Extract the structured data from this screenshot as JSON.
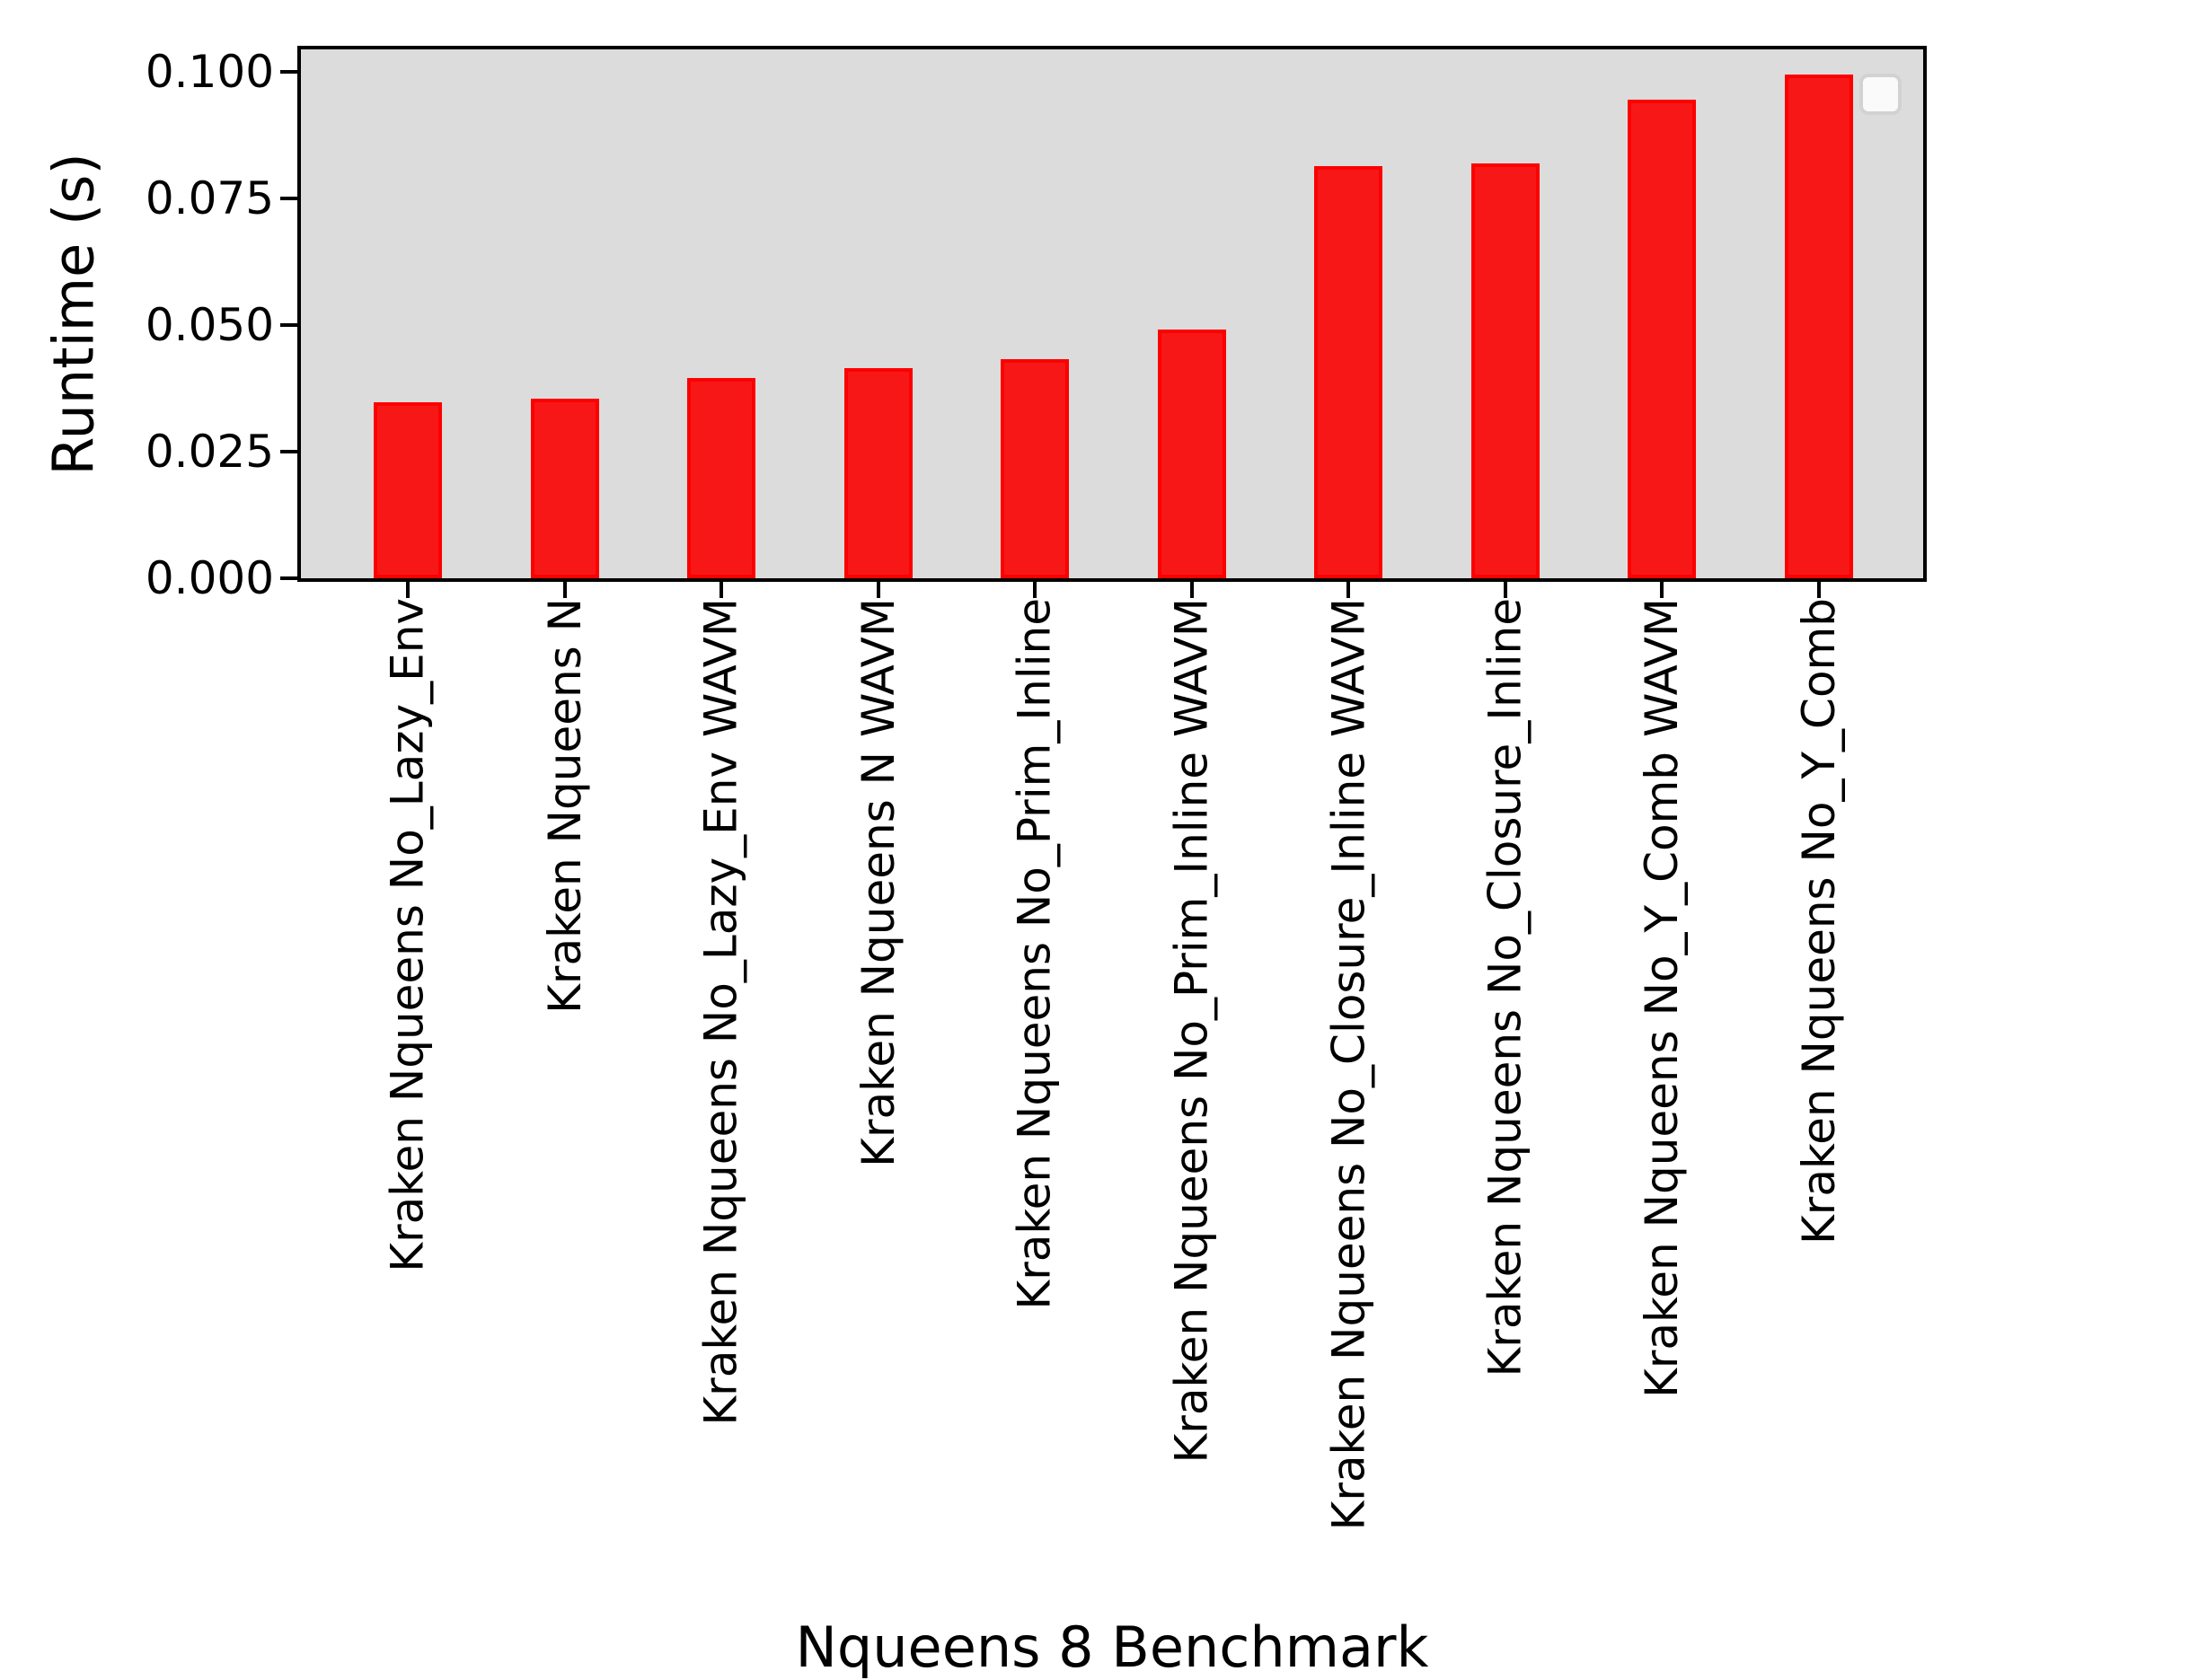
{
  "chart_data": {
    "type": "bar",
    "title": "",
    "xlabel": "Nqueens 8 Benchmark",
    "ylabel": "Runtime (s)",
    "categories": [
      "Kraken Nqueens No_Lazy_Env",
      "Kraken Nqueens N",
      "Kraken Nqueens No_Lazy_Env WAVM",
      "Kraken Nqueens N WAVM",
      "Kraken Nqueens No_Prim_Inline",
      "Kraken Nqueens No_Prim_Inline WAVM",
      "Kraken Nqueens No_Closure_Inline WAVM",
      "Kraken Nqueens No_Closure_Inline",
      "Kraken Nqueens No_Y_Comb WAVM",
      "Kraken Nqueens No_Y_Comb"
    ],
    "values": [
      0.0347,
      0.0355,
      0.0395,
      0.0415,
      0.0433,
      0.0491,
      0.0814,
      0.0819,
      0.0945,
      0.0995
    ],
    "ylim": [
      0,
      0.1044
    ],
    "yticks": [
      0.0,
      0.025,
      0.05,
      0.075,
      0.1
    ],
    "ytick_labels": [
      "0.000",
      "0.025",
      "0.050",
      "0.075",
      "0.100"
    ],
    "grid": false,
    "legend": {
      "visible": true,
      "entries": [],
      "position": "upper right"
    },
    "colors": {
      "bar_fill": "#f81717",
      "bar_edge": "#fb0101",
      "plot_background": "#dcdcdc",
      "spine": "#000000",
      "text": "#000000",
      "legend_background": "#fafafa",
      "legend_border": "#d2d2d2"
    }
  }
}
